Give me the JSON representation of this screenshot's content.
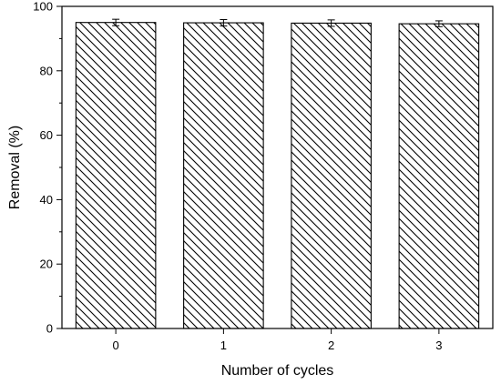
{
  "chart_data": {
    "type": "bar",
    "title": "",
    "xlabel": "Number of cycles",
    "ylabel": "Removal (%)",
    "categories": [
      "0",
      "1",
      "2",
      "3"
    ],
    "values": [
      95.0,
      94.9,
      94.8,
      94.6
    ],
    "error": [
      1.0,
      1.0,
      1.0,
      0.9
    ],
    "ylim": [
      0,
      100
    ],
    "yticks": [
      0,
      20,
      40,
      60,
      80,
      100
    ],
    "grid": false,
    "legend": "none",
    "bar_fill": "diagonal-hatch",
    "colors": {
      "bar_stroke": "#000000",
      "hatch": "#000000",
      "background": "#ffffff"
    }
  }
}
